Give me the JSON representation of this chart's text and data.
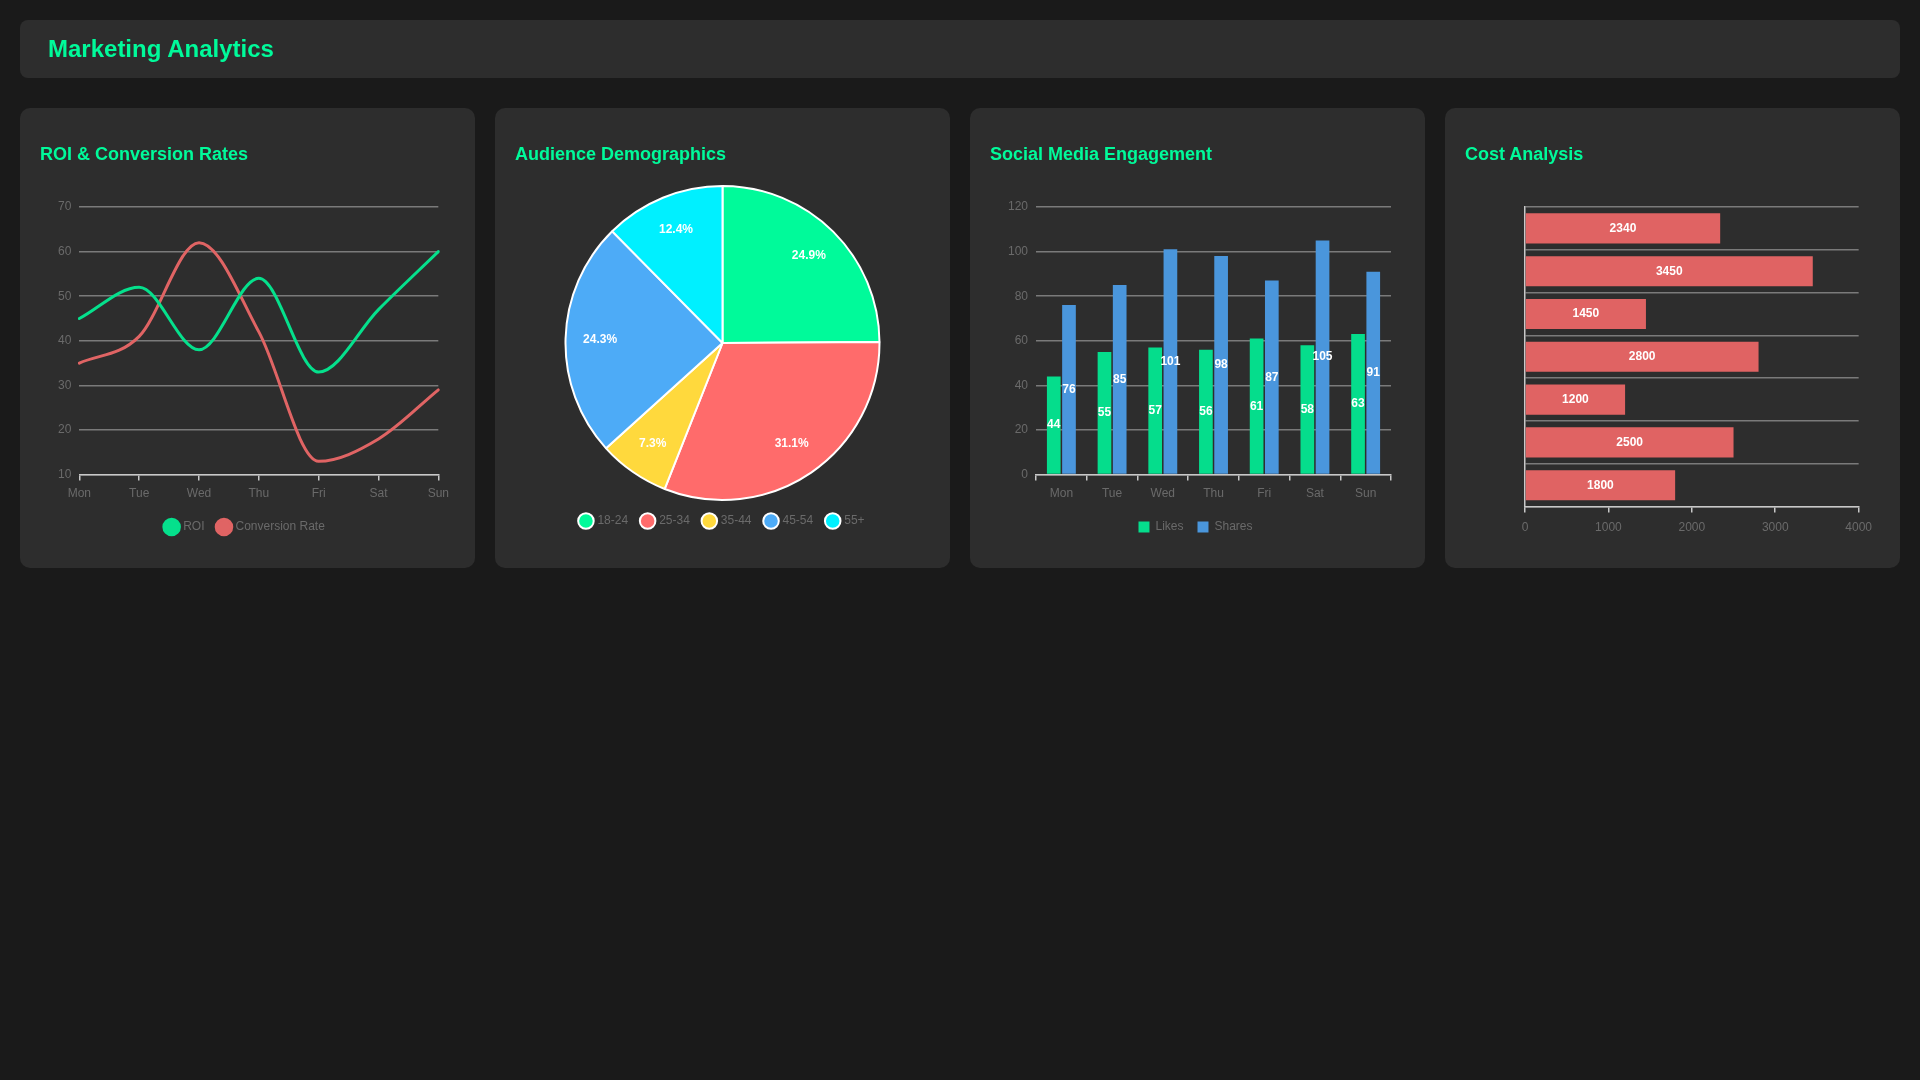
{
  "chart_data": [
    {
      "type": "other",
      "title": "Marketing Analytics"
    },
    {
      "type": "line",
      "title": "ROI & Conversion Rates",
      "categories": [
        "Mon",
        "Tue",
        "Wed",
        "Thu",
        "Fri",
        "Sat",
        "Sun"
      ],
      "series": [
        {
          "name": "ROI",
          "color": "#05e08c",
          "values": [
            45,
            52,
            38,
            54,
            33,
            47,
            60
          ]
        },
        {
          "name": "Conversion Rate",
          "color": "#e06464",
          "values": [
            35,
            41,
            62,
            42,
            13,
            18,
            29
          ]
        }
      ],
      "ylim": [
        10,
        70
      ],
      "yticks": [
        10,
        20,
        30,
        40,
        50,
        60,
        70
      ],
      "grid": "y",
      "legend": "bottom"
    },
    {
      "type": "pie",
      "title": "Audience Demographics",
      "categories": [
        "18-24",
        "25-34",
        "35-44",
        "45-54",
        "55+"
      ],
      "values": [
        24.9,
        31.1,
        7.3,
        24.3,
        12.4
      ],
      "colors": [
        "#00fa9a",
        "#ff6b6b",
        "#ffd93d",
        "#4dabf7",
        "#00f0ff"
      ],
      "value_labels": [
        "24.9%",
        "31.1%",
        "7.3%",
        "24.3%",
        "12.4%"
      ],
      "legend": "bottom"
    },
    {
      "type": "bar",
      "title": "Social Media Engagement",
      "categories": [
        "Mon",
        "Tue",
        "Wed",
        "Thu",
        "Fri",
        "Sat",
        "Sun"
      ],
      "series": [
        {
          "name": "Likes",
          "color": "#05dd8c",
          "values": [
            44,
            55,
            57,
            56,
            61,
            58,
            63
          ]
        },
        {
          "name": "Shares",
          "color": "#4a96dc",
          "values": [
            76,
            85,
            101,
            98,
            87,
            105,
            91
          ]
        }
      ],
      "ylim": [
        0,
        120
      ],
      "yticks": [
        0,
        20,
        40,
        60,
        80,
        100,
        120
      ],
      "grid": "y",
      "legend": "bottom",
      "data_labels": true
    },
    {
      "type": "bar",
      "title": "Cost Analysis",
      "orientation": "horizontal",
      "categories": [
        null,
        null,
        null,
        null,
        null,
        null,
        null
      ],
      "values": [
        2340,
        3450,
        1450,
        2800,
        1200,
        2500,
        1800
      ],
      "color": "#e06363",
      "xlim": [
        0,
        4000
      ],
      "xticks": [
        0,
        1000,
        2000,
        3000,
        4000
      ],
      "grid": "y",
      "tick_labels": "x",
      "data_labels": true
    }
  ]
}
